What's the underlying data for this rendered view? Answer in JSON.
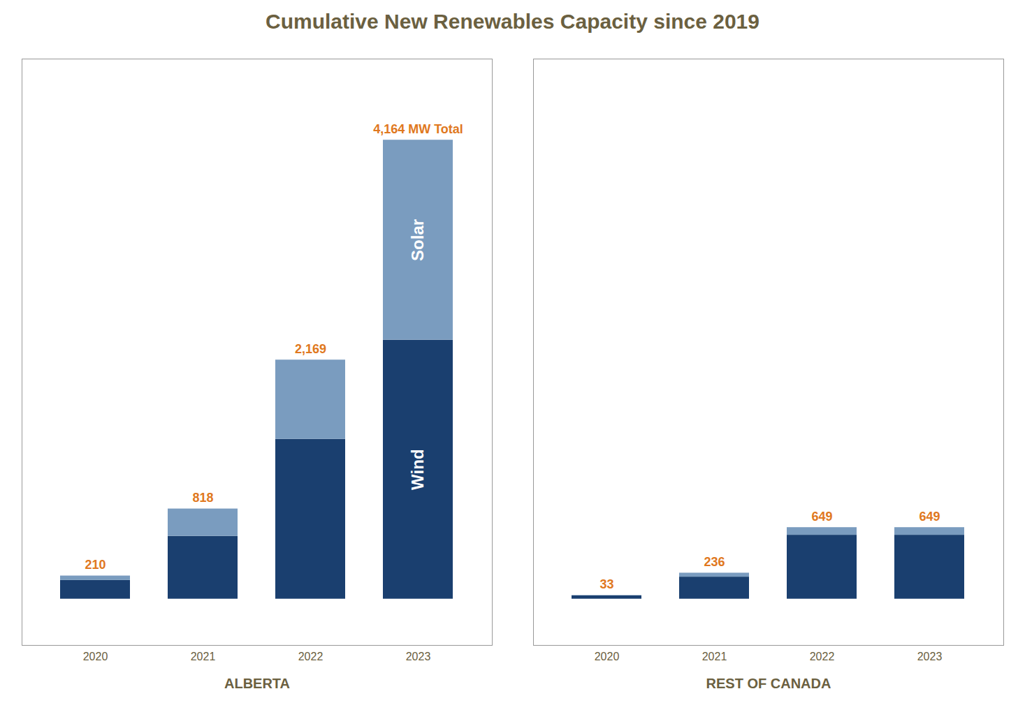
{
  "chart_data": {
    "type": "bar",
    "title": "Cumulative New Renewables Capacity since 2019",
    "categories": [
      "2020",
      "2021",
      "2022",
      "2023",
      "2020",
      "2021",
      "2022",
      "2023"
    ],
    "groups": [
      "ALBERTA",
      "ALBERTA",
      "ALBERTA",
      "ALBERTA",
      "REST OF CANADA",
      "REST OF CANADA",
      "REST OF CANADA",
      "REST OF CANADA"
    ],
    "series": [
      {
        "name": "Wind",
        "color": "#1a3f6f",
        "values": [
          170,
          570,
          1450,
          2350,
          30,
          200,
          580,
          580
        ]
      },
      {
        "name": "Solar",
        "color": "#7a9cbf",
        "values": [
          40,
          248,
          719,
          1814,
          3,
          36,
          69,
          69
        ]
      }
    ],
    "totals": [
      210,
      818,
      2169,
      4164,
      33,
      236,
      649,
      649
    ],
    "total_labels": [
      "210",
      "818",
      "2,169",
      "4,164 MW Total",
      "33",
      "236",
      "649",
      "649"
    ],
    "stacked": true,
    "data_labels": true,
    "ylim": [
      -420,
      4900
    ],
    "yticks": [],
    "grid": false,
    "tick_labels": "x"
  }
}
